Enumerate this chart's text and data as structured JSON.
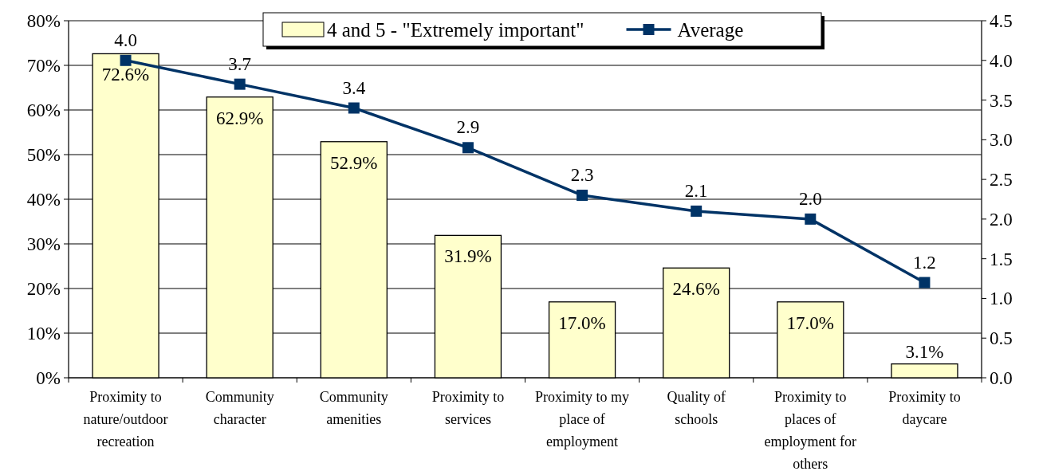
{
  "chart_data": {
    "type": "bar",
    "categories": [
      "Proximity to nature/outdoor recreation",
      "Community character",
      "Community amenities",
      "Proximity to services",
      "Proximity to my place of employment",
      "Quality of schools",
      "Proximity to places of employment for others",
      "Proximity to daycare"
    ],
    "series": [
      {
        "name": "4 and 5 - \"Extremely important\"",
        "color": "#ffffcc",
        "values": [
          72.6,
          62.9,
          52.9,
          31.9,
          17.0,
          24.6,
          17.0,
          3.1
        ],
        "value_labels": [
          "72.6%",
          "62.9%",
          "52.9%",
          "31.9%",
          "17.0%",
          "24.6%",
          "17.0%",
          "3.1%"
        ]
      },
      {
        "name": "Average",
        "type": "line",
        "axis": "y2",
        "color": "#003366",
        "values": [
          4.0,
          3.7,
          3.4,
          2.9,
          2.3,
          2.1,
          2.0,
          1.2
        ],
        "value_labels": [
          "4.0",
          "3.7",
          "3.4",
          "2.9",
          "2.3",
          "2.1",
          "2.0",
          "1.2"
        ]
      }
    ],
    "ylim": [
      0,
      80
    ],
    "yticks": [
      {
        "value": 0,
        "label": "0%"
      },
      {
        "value": 10,
        "label": "10%"
      },
      {
        "value": 20,
        "label": "20%"
      },
      {
        "value": 30,
        "label": "30%"
      },
      {
        "value": 40,
        "label": "40%"
      },
      {
        "value": 50,
        "label": "50%"
      },
      {
        "value": 60,
        "label": "60%"
      },
      {
        "value": 70,
        "label": "70%"
      },
      {
        "value": 80,
        "label": "80%"
      }
    ],
    "y2lim": [
      0,
      4.5
    ],
    "y2ticks": [
      {
        "value": 0,
        "label": "0.0"
      },
      {
        "value": 0.5,
        "label": "0.5"
      },
      {
        "value": 1,
        "label": "1.0"
      },
      {
        "value": 1.5,
        "label": "1.5"
      },
      {
        "value": 2,
        "label": "2.0"
      },
      {
        "value": 2.5,
        "label": "2.5"
      },
      {
        "value": 3,
        "label": "3.0"
      },
      {
        "value": 3.5,
        "label": "3.5"
      },
      {
        "value": 4,
        "label": "4.0"
      },
      {
        "value": 4.5,
        "label": "4.5"
      }
    ],
    "grid": "y",
    "legend": "top",
    "marker": "square",
    "line_style": "solid"
  }
}
